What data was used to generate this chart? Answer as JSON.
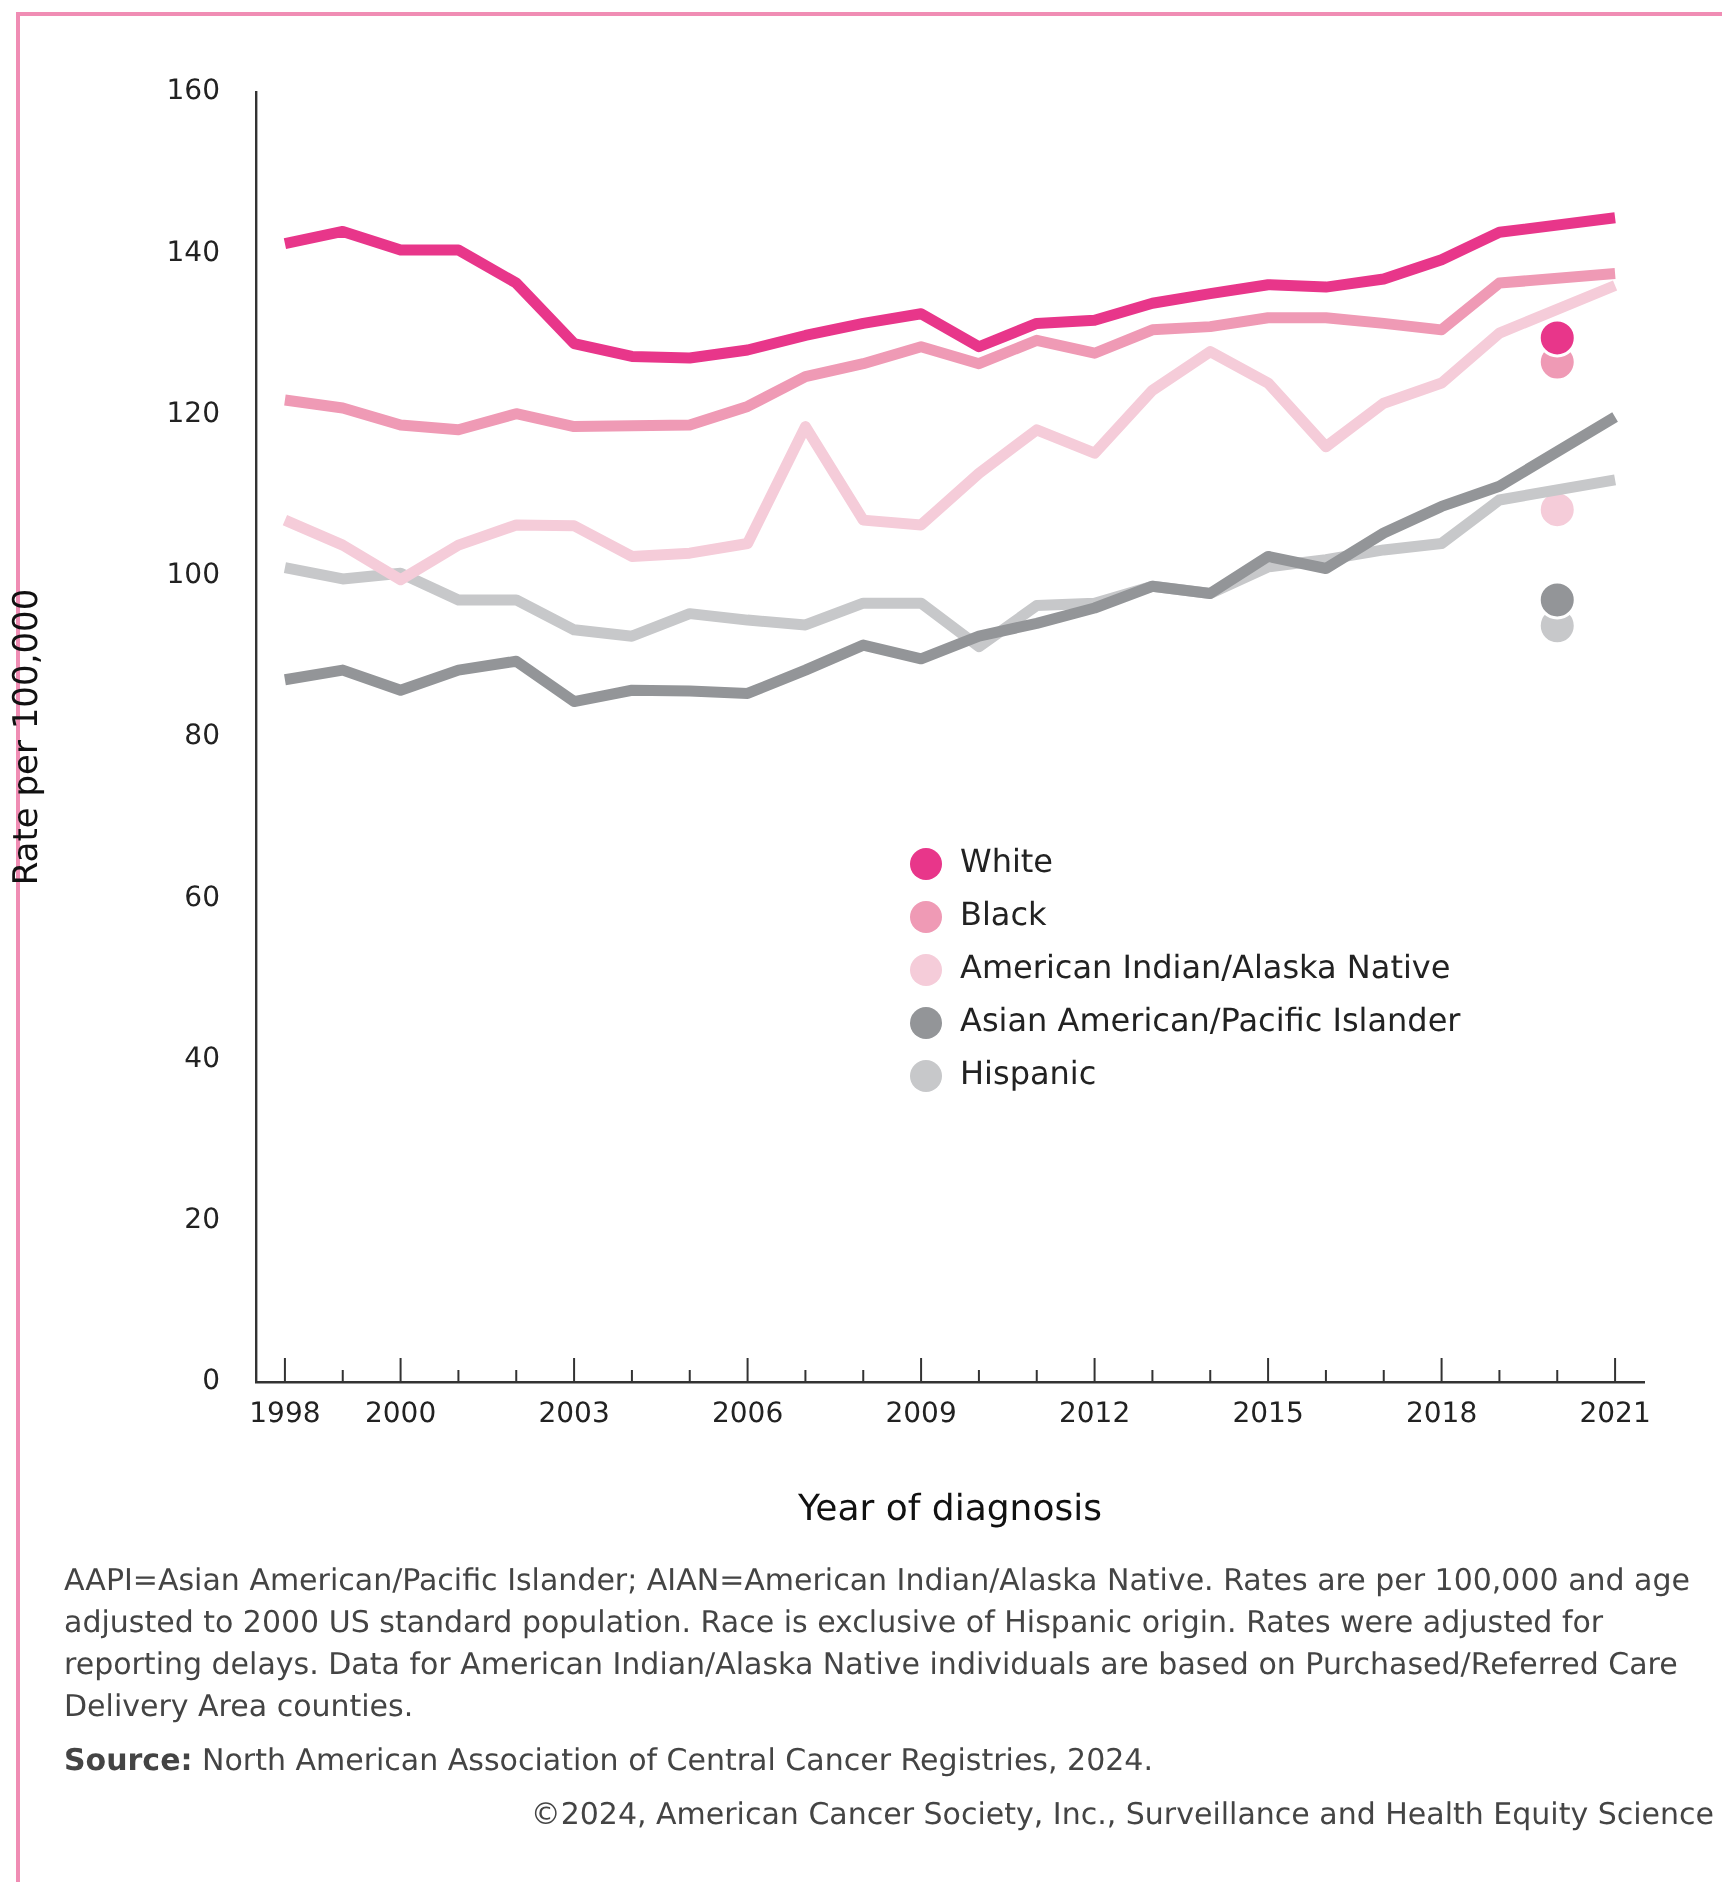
{
  "chart_data": {
    "type": "line",
    "xlabel": "Year of diagnosis",
    "ylabel": "Rate per 100,000",
    "xlim": [
      1997.5,
      2021.5
    ],
    "xticks": [
      1998,
      {
        "value": 1999,
        "label": null
      },
      2000,
      {
        "value": 2001,
        "label": null
      },
      {
        "value": 2002,
        "label": null
      },
      2003,
      {
        "value": 2004,
        "label": null
      },
      {
        "value": 2005,
        "label": null
      },
      2006,
      {
        "value": 2007,
        "label": null
      },
      {
        "value": 2008,
        "label": null
      },
      2009,
      {
        "value": 2010,
        "label": null
      },
      {
        "value": 2011,
        "label": null
      },
      2012,
      {
        "value": 2013,
        "label": null
      },
      {
        "value": 2014,
        "label": null
      },
      2015,
      {
        "value": 2016,
        "label": null
      },
      {
        "value": 2017,
        "label": null
      },
      2018,
      {
        "value": 2019,
        "label": null
      },
      {
        "value": 2020,
        "label": null
      },
      2021
    ],
    "ylim": [
      0,
      160
    ],
    "yticks": [
      0,
      20,
      40,
      60,
      80,
      100,
      120,
      140,
      160
    ],
    "grid": false,
    "legend": "right",
    "marker": "none",
    "line_style": "solid",
    "series": [
      {
        "name": "White",
        "color": "#e8368a",
        "x": [
          1998,
          1999,
          2000,
          2001,
          2002,
          2003,
          2004,
          2005,
          2006,
          2007,
          2008,
          2009,
          2010,
          2011,
          2012,
          2013,
          2014,
          2015,
          2016,
          2017,
          2018,
          2019,
          2021
        ],
        "values": [
          141.2,
          142.7,
          140.4,
          140.4,
          136.3,
          128.8,
          127.2,
          127.0,
          128.0,
          129.8,
          131.3,
          132.5,
          128.4,
          131.3,
          131.7,
          133.8,
          135.0,
          136.1,
          135.8,
          136.8,
          139.2,
          142.6,
          144.4
        ]
      },
      {
        "name": "Black",
        "color": "#ef9ab5",
        "x": [
          1998,
          1999,
          2000,
          2001,
          2002,
          2003,
          2004,
          2005,
          2006,
          2007,
          2008,
          2009,
          2010,
          2011,
          2012,
          2013,
          2014,
          2015,
          2016,
          2017,
          2018,
          2019,
          2021
        ],
        "values": [
          121.8,
          120.8,
          118.7,
          118.1,
          120.1,
          118.5,
          118.6,
          118.7,
          121.0,
          124.7,
          126.3,
          128.4,
          126.3,
          129.2,
          127.6,
          130.5,
          130.9,
          132.0,
          132.0,
          131.3,
          130.5,
          136.3,
          137.5
        ]
      },
      {
        "name": "American Indian/Alaska Native",
        "color": "#f5ccd9",
        "x": [
          1998,
          1999,
          2000,
          2001,
          2002,
          2003,
          2004,
          2005,
          2006,
          2007,
          2008,
          2009,
          2010,
          2011,
          2012,
          2013,
          2014,
          2015,
          2016,
          2017,
          2018,
          2019,
          2021
        ],
        "values": [
          106.9,
          103.8,
          99.5,
          103.8,
          106.3,
          106.2,
          102.4,
          102.8,
          104.0,
          118.5,
          106.9,
          106.3,
          112.7,
          118.1,
          115.2,
          123.0,
          127.8,
          123.9,
          116.0,
          121.4,
          123.9,
          130.1,
          136.0
        ]
      },
      {
        "name": "Asian American/Pacific Islander",
        "color": "#939598",
        "x": [
          1998,
          1999,
          2000,
          2001,
          2002,
          2003,
          2004,
          2005,
          2006,
          2007,
          2008,
          2009,
          2010,
          2011,
          2012,
          2013,
          2014,
          2015,
          2016,
          2017,
          2018,
          2019,
          2021
        ],
        "values": [
          87.1,
          88.3,
          85.8,
          88.3,
          89.4,
          84.4,
          85.8,
          85.7,
          85.4,
          88.3,
          91.4,
          89.7,
          92.5,
          94.1,
          96.0,
          98.7,
          97.8,
          102.4,
          100.9,
          105.3,
          108.6,
          111.1,
          119.7
        ]
      },
      {
        "name": "Hispanic",
        "color": "#c7c8ca",
        "x": [
          1998,
          1999,
          2000,
          2001,
          2002,
          2003,
          2004,
          2005,
          2006,
          2007,
          2008,
          2009,
          2010,
          2011,
          2012,
          2013,
          2014,
          2015,
          2016,
          2017,
          2018,
          2019,
          2021
        ],
        "values": [
          101.0,
          99.6,
          100.3,
          97.0,
          97.0,
          93.3,
          92.5,
          95.3,
          94.5,
          93.9,
          96.6,
          96.6,
          91.2,
          96.3,
          96.6,
          98.7,
          97.8,
          101.1,
          102.0,
          103.2,
          104.0,
          109.4,
          111.9
        ]
      },
      {
        "type": "scatter",
        "marker": "circle",
        "color": "#e8368a",
        "x": [
          2020
        ],
        "values": [
          129.5
        ]
      },
      {
        "type": "scatter",
        "marker": "circle",
        "color": "#ef9ab5",
        "x": [
          2020
        ],
        "values": [
          126.5
        ]
      },
      {
        "type": "scatter",
        "marker": "circle",
        "color": "#f5ccd9",
        "x": [
          2020
        ],
        "values": [
          108.2
        ]
      },
      {
        "type": "scatter",
        "marker": "circle",
        "color": "#939598",
        "x": [
          2020
        ],
        "values": [
          97.0
        ]
      },
      {
        "type": "scatter",
        "marker": "circle",
        "color": "#c7c8ca",
        "x": [
          2020
        ],
        "values": [
          93.8
        ]
      }
    ],
    "annotations": [
      "AAPI=Asian American/Pacific Islander; AIAN=American Indian/Alaska Native. Rates are per 100,000 and age adjusted to 2000 US standard population. Race is exclusive of Hispanic origin. Rates were adjusted for reporting delays. Data for American Indian/Alaska Native individuals are based on Purchased/Referred Care Delivery Area counties.",
      "Source: North American Association of Central Cancer Registries, 2024.",
      "©2024, American Cancer Society, Inc., Surveillance and Health Equity Science"
    ]
  }
}
